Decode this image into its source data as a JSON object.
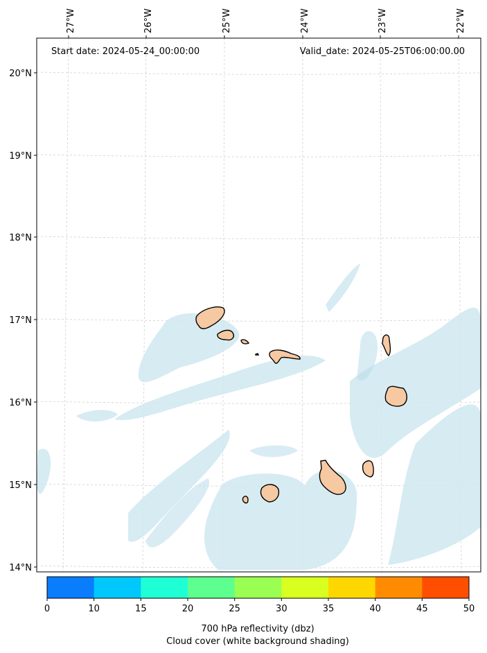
{
  "map": {
    "start_label": "Start date: 2024-05-24_00:00:00",
    "valid_label": "Valid_date: 2024-05-25T06:00:00.00",
    "lon_labels": [
      "27°W",
      "26°W",
      "25°W",
      "24°W",
      "23°W",
      "22°W"
    ],
    "lat_labels": [
      "20°N",
      "19°N",
      "18°N",
      "17°N",
      "16°N",
      "15°N",
      "14°N"
    ]
  },
  "colorbar": {
    "ticks": [
      "0",
      "10",
      "15",
      "20",
      "25",
      "30",
      "35",
      "40",
      "45",
      "50"
    ],
    "colors": [
      "#0a7dfd",
      "#00c8fd",
      "#1fffd5",
      "#5dff8e",
      "#9bff53",
      "#d8ff1f",
      "#ffd700",
      "#ff8c00",
      "#ff4e00"
    ],
    "label_line1": "700 hPa reflectivity (dbz)",
    "label_line2": "Cloud cover (white background shading)"
  }
}
